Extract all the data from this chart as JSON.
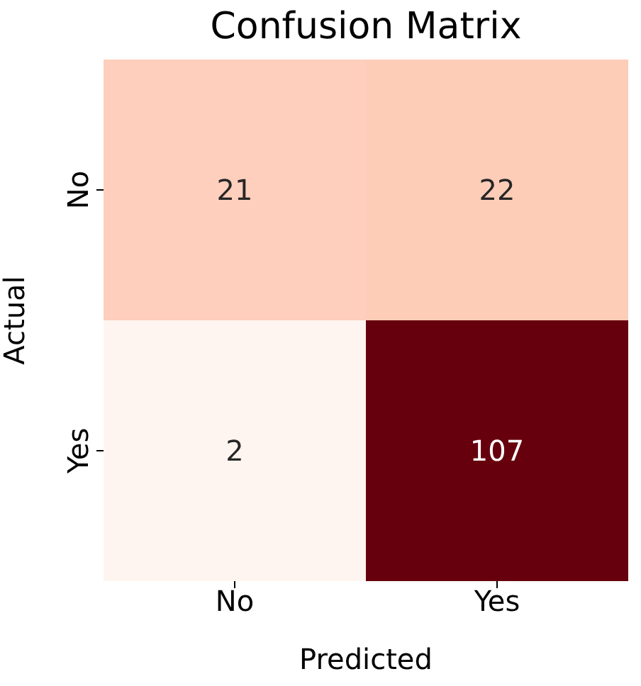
{
  "chart_data": {
    "type": "heatmap",
    "title": "Confusion Matrix",
    "xlabel": "Predicted",
    "ylabel": "Actual",
    "data_labels": true,
    "categories": [
      "No",
      "Yes"
    ],
    "y_categories": [
      "No",
      "Yes"
    ],
    "cells": [
      [
        21,
        22
      ],
      [
        2,
        107
      ]
    ]
  }
}
